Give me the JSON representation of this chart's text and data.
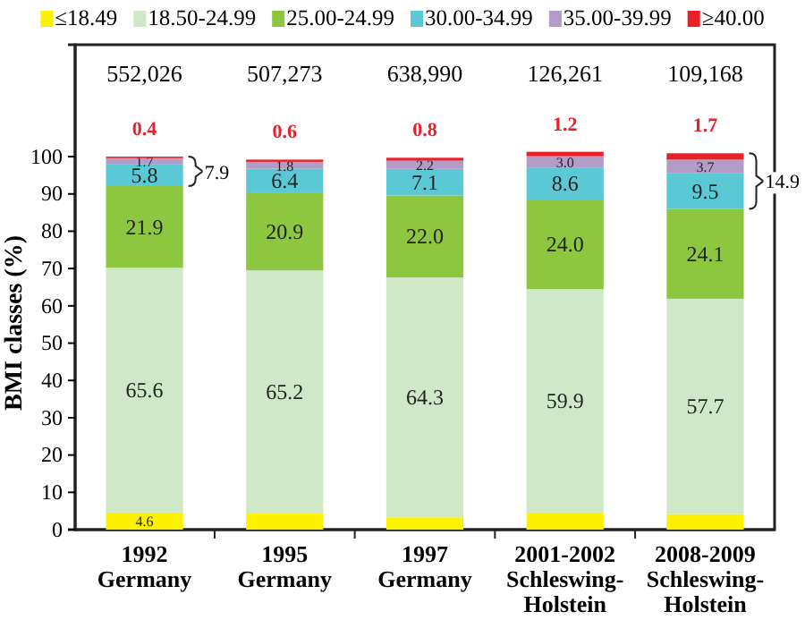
{
  "chart_data": {
    "type": "bar",
    "stacked": true,
    "ylabel": "BMI classes (%)",
    "categories": [
      "1992\nGermany",
      "1995\nGermany",
      "1997\nGermany",
      "2001-2002\nSchleswing-\nHolstein",
      "2008-2009\nSchleswing-\nHolstein"
    ],
    "series": [
      {
        "name": "≤18.49",
        "color": "#fff200",
        "values": [
          4.6,
          4.3,
          3.3,
          4.6,
          4.2
        ],
        "value_labels": [
          "4.6",
          null,
          null,
          null,
          null
        ]
      },
      {
        "name": "18.50-24.99",
        "color": "#cfe8c8",
        "values": [
          65.6,
          65.2,
          64.3,
          59.9,
          57.7
        ],
        "value_labels": [
          "65.6",
          "65.2",
          "64.3",
          "59.9",
          "57.7"
        ]
      },
      {
        "name": "25.00-24.99",
        "color": "#8dc63f",
        "values": [
          21.9,
          20.9,
          22.0,
          24.0,
          24.1
        ],
        "value_labels": [
          "21.9",
          "20.9",
          "22.0",
          "24.0",
          "24.1"
        ]
      },
      {
        "name": "30.00-34.99",
        "color": "#5bc8d5",
        "values": [
          5.8,
          6.4,
          7.1,
          8.6,
          9.5
        ],
        "value_labels": [
          "5.8",
          "6.4",
          "7.1",
          "8.6",
          "9.5"
        ]
      },
      {
        "name": "35.00-39.99",
        "color": "#b49cc9",
        "values": [
          1.7,
          1.8,
          2.2,
          3.0,
          3.7
        ],
        "value_labels": [
          "1.7",
          "1.8",
          "2.2",
          "3.0",
          "3.7"
        ]
      },
      {
        "name": "≥40.00",
        "color": "#e8202a",
        "values": [
          0.4,
          0.6,
          0.8,
          1.2,
          1.7
        ],
        "value_labels": [
          "0.4",
          "0.6",
          "0.8",
          "1.2",
          "1.7"
        ]
      }
    ],
    "ylim": [
      0,
      130
    ],
    "yticks": [
      0,
      10,
      20,
      30,
      40,
      50,
      60,
      70,
      80,
      90,
      100
    ],
    "legend": "top",
    "annotations": [
      "552,026",
      "507,273",
      "638,990",
      "126,261",
      "109,168",
      "7.9",
      "14.9"
    ]
  }
}
